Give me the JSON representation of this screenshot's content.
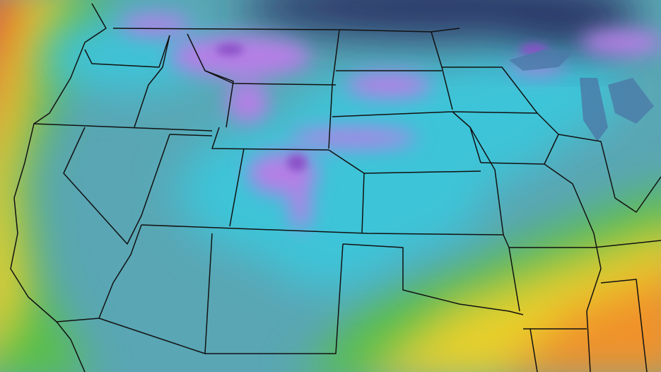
{
  "map": {
    "colors": {
      "land_base": "#5aa6b4",
      "rain_light": "#3cc4d8",
      "snow": "#b57fe6",
      "snow_heavy": "#8a4fc8",
      "cold_deep": "#2c3566",
      "warm_green": "#58c046",
      "warm_yellow": "#e8d02a",
      "warm_orange": "#f0922a",
      "warm_red": "#e2452a",
      "borders": "#111111"
    }
  }
}
